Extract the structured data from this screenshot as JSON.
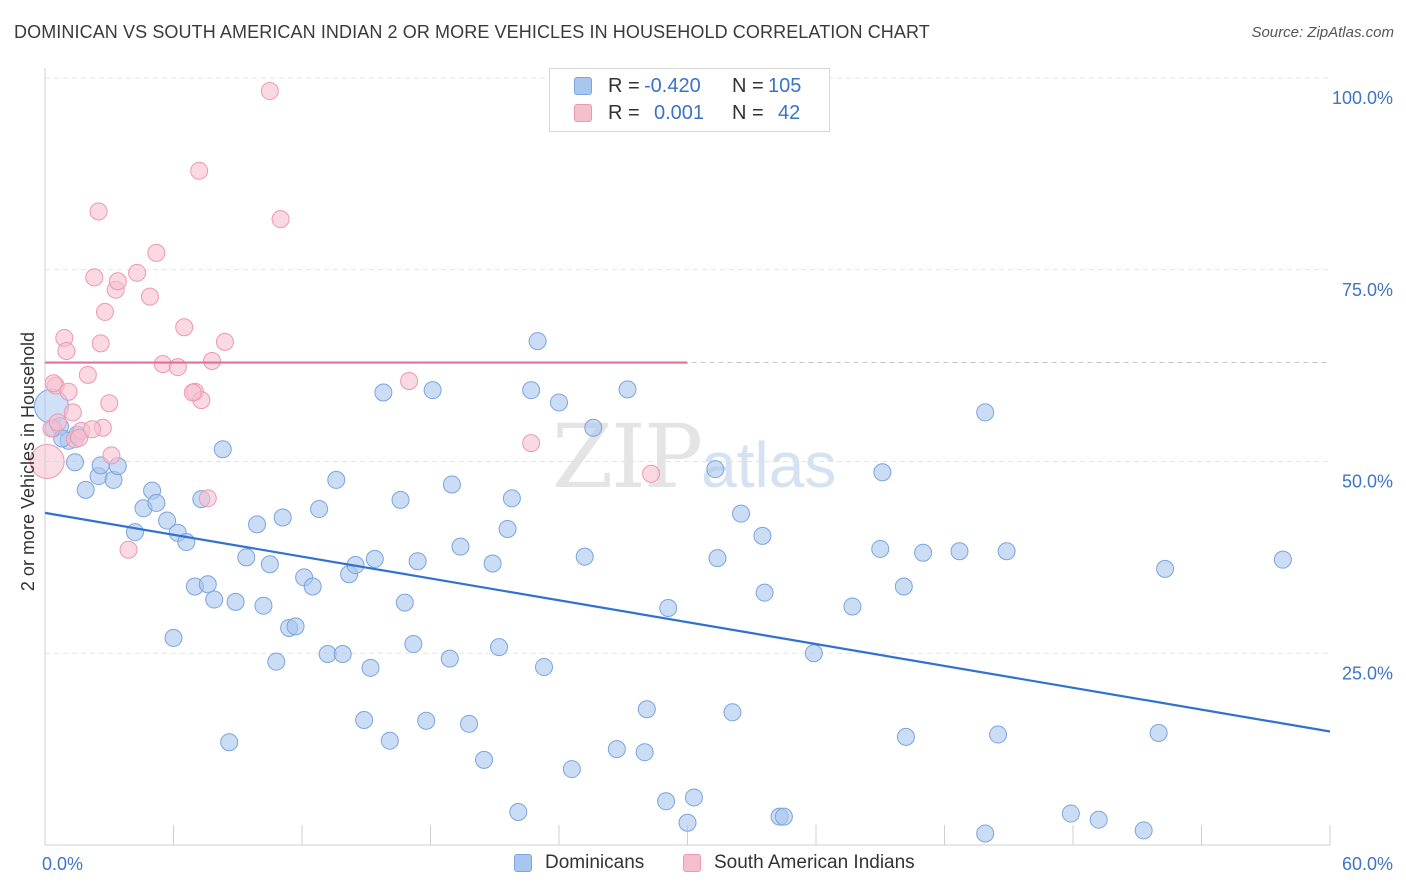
{
  "title": "DOMINICAN VS SOUTH AMERICAN INDIAN 2 OR MORE VEHICLES IN HOUSEHOLD CORRELATION CHART",
  "source": "Source: ZipAtlas.com",
  "watermark": {
    "zip": "ZIP",
    "atlas": "atlas"
  },
  "colors": {
    "blue_fill": "#a9c6ee",
    "blue_stroke": "#7aa4e0",
    "blue_line": "#2f72d0",
    "pink_fill": "#f6bfd0",
    "pink_stroke": "#ee97b3",
    "pink_line": "#e0709a",
    "grid": "#e3e3e3",
    "axis_text": "#3f74c6"
  },
  "legend": {
    "rows": [
      {
        "r_label": "R =",
        "r_value": "-0.420",
        "n_label": "N =",
        "n_value": "105"
      },
      {
        "r_label": "R =",
        "r_value": "0.001",
        "n_label": "N =",
        "n_value": "42"
      }
    ]
  },
  "bottom_legend": {
    "items": [
      "Dominicans",
      "South American Indians"
    ]
  },
  "chart_data": {
    "type": "scatter",
    "title": "DOMINICAN VS SOUTH AMERICAN INDIAN 2 OR MORE VEHICLES IN HOUSEHOLD CORRELATION CHART",
    "xlabel": "",
    "ylabel": "2 or more Vehicles in Household",
    "xlim": [
      0,
      60
    ],
    "ylim": [
      0,
      100
    ],
    "x_tick_labels": [
      "0.0%",
      "60.0%"
    ],
    "y_ticks": [
      25,
      50,
      75,
      100
    ],
    "y_tick_labels": [
      "25.0%",
      "50.0%",
      "75.0%",
      "100.0%"
    ],
    "grid": true,
    "legend_position": "top-center",
    "series": [
      {
        "name": "Dominicans",
        "r": -0.42,
        "n": 105,
        "trend": {
          "x": [
            0,
            60
          ],
          "y": [
            43.3,
            14.8
          ]
        },
        "points": [
          [
            0.3,
            57.2
          ],
          [
            0.4,
            54.3
          ],
          [
            0.7,
            54.6
          ],
          [
            1.1,
            52.7
          ],
          [
            1.4,
            49.9
          ],
          [
            1.5,
            53.5
          ],
          [
            1.9,
            46.3
          ],
          [
            2.5,
            48.1
          ],
          [
            2.6,
            49.5
          ],
          [
            3.2,
            47.6
          ],
          [
            3.4,
            49.4
          ],
          [
            4.2,
            40.8
          ],
          [
            4.6,
            43.9
          ],
          [
            5.0,
            46.2
          ],
          [
            5.2,
            44.6
          ],
          [
            5.7,
            42.3
          ],
          [
            6.2,
            40.7
          ],
          [
            6.6,
            39.5
          ],
          [
            7.0,
            33.7
          ],
          [
            7.3,
            45.1
          ],
          [
            7.6,
            34.0
          ],
          [
            7.9,
            32.0
          ],
          [
            6.0,
            27.0
          ],
          [
            8.3,
            51.6
          ],
          [
            8.6,
            13.4
          ],
          [
            8.9,
            31.7
          ],
          [
            9.4,
            37.5
          ],
          [
            9.9,
            41.8
          ],
          [
            10.2,
            31.2
          ],
          [
            10.5,
            36.6
          ],
          [
            10.8,
            23.9
          ],
          [
            11.1,
            42.7
          ],
          [
            11.4,
            28.3
          ],
          [
            11.7,
            28.5
          ],
          [
            12.1,
            34.9
          ],
          [
            12.5,
            33.7
          ],
          [
            12.8,
            43.8
          ],
          [
            13.2,
            24.9
          ],
          [
            13.6,
            47.6
          ],
          [
            13.9,
            24.9
          ],
          [
            14.2,
            35.3
          ],
          [
            14.5,
            36.5
          ],
          [
            14.9,
            16.3
          ],
          [
            15.2,
            23.1
          ],
          [
            15.4,
            37.3
          ],
          [
            15.8,
            59.0
          ],
          [
            16.1,
            13.6
          ],
          [
            16.6,
            45.0
          ],
          [
            16.8,
            31.6
          ],
          [
            17.2,
            26.2
          ],
          [
            17.4,
            37.0
          ],
          [
            17.8,
            16.2
          ],
          [
            18.1,
            59.3
          ],
          [
            18.9,
            24.3
          ],
          [
            19.0,
            47.0
          ],
          [
            19.4,
            38.9
          ],
          [
            19.8,
            15.8
          ],
          [
            20.5,
            11.1
          ],
          [
            20.9,
            36.7
          ],
          [
            21.2,
            25.8
          ],
          [
            21.6,
            41.2
          ],
          [
            21.8,
            45.2
          ],
          [
            22.1,
            4.3
          ],
          [
            22.7,
            59.3
          ],
          [
            23.0,
            65.7
          ],
          [
            23.3,
            23.2
          ],
          [
            24.0,
            57.7
          ],
          [
            24.6,
            9.9
          ],
          [
            25.2,
            37.6
          ],
          [
            25.6,
            54.4
          ],
          [
            26.7,
            12.5
          ],
          [
            27.2,
            59.4
          ],
          [
            28.0,
            12.1
          ],
          [
            28.1,
            17.7
          ],
          [
            29.0,
            5.7
          ],
          [
            29.1,
            30.9
          ],
          [
            30.0,
            2.9
          ],
          [
            30.3,
            6.2
          ],
          [
            31.3,
            49.0
          ],
          [
            31.4,
            37.4
          ],
          [
            32.1,
            17.3
          ],
          [
            32.5,
            43.2
          ],
          [
            33.5,
            40.3
          ],
          [
            33.6,
            32.9
          ],
          [
            34.3,
            3.7
          ],
          [
            34.5,
            3.7
          ],
          [
            35.9,
            25.0
          ],
          [
            37.7,
            31.1
          ],
          [
            39.0,
            38.6
          ],
          [
            39.1,
            48.6
          ],
          [
            40.1,
            33.7
          ],
          [
            40.2,
            14.1
          ],
          [
            41.0,
            38.1
          ],
          [
            42.7,
            38.3
          ],
          [
            43.9,
            1.5
          ],
          [
            43.9,
            56.4
          ],
          [
            44.5,
            14.4
          ],
          [
            44.9,
            38.3
          ],
          [
            47.9,
            4.1
          ],
          [
            49.2,
            3.3
          ],
          [
            51.3,
            1.9
          ],
          [
            52.0,
            14.6
          ],
          [
            52.3,
            36.0
          ],
          [
            57.8,
            37.2
          ],
          [
            0.8,
            53.0
          ]
        ]
      },
      {
        "name": "South American Indians",
        "r": 0.001,
        "n": 42,
        "trend": {
          "x": [
            0,
            30
          ],
          "y": [
            62.9,
            62.9
          ]
        },
        "points": [
          [
            0.1,
            50.0
          ],
          [
            0.3,
            54.3
          ],
          [
            0.5,
            59.9
          ],
          [
            0.9,
            66.1
          ],
          [
            1.0,
            64.4
          ],
          [
            1.1,
            59.1
          ],
          [
            1.3,
            56.4
          ],
          [
            1.4,
            52.9
          ],
          [
            1.7,
            54.0
          ],
          [
            2.0,
            61.3
          ],
          [
            2.3,
            74.0
          ],
          [
            2.5,
            82.6
          ],
          [
            2.6,
            65.4
          ],
          [
            2.8,
            69.5
          ],
          [
            3.0,
            57.6
          ],
          [
            3.1,
            50.8
          ],
          [
            3.3,
            72.4
          ],
          [
            3.4,
            73.5
          ],
          [
            2.7,
            54.4
          ],
          [
            3.9,
            38.5
          ],
          [
            4.3,
            74.6
          ],
          [
            4.9,
            71.5
          ],
          [
            5.2,
            77.2
          ],
          [
            5.5,
            62.7
          ],
          [
            6.5,
            67.5
          ],
          [
            6.2,
            62.3
          ],
          [
            7.0,
            59.1
          ],
          [
            7.2,
            87.9
          ],
          [
            7.6,
            45.2
          ],
          [
            7.3,
            58.0
          ],
          [
            7.8,
            63.1
          ],
          [
            8.4,
            65.6
          ],
          [
            10.5,
            98.3
          ],
          [
            11.0,
            81.6
          ],
          [
            17.0,
            60.5
          ],
          [
            22.7,
            52.4
          ],
          [
            28.3,
            48.4
          ],
          [
            0.6,
            55.1
          ],
          [
            1.6,
            53.1
          ],
          [
            2.2,
            54.2
          ],
          [
            0.4,
            60.2
          ],
          [
            6.9,
            59.0
          ]
        ]
      }
    ]
  }
}
